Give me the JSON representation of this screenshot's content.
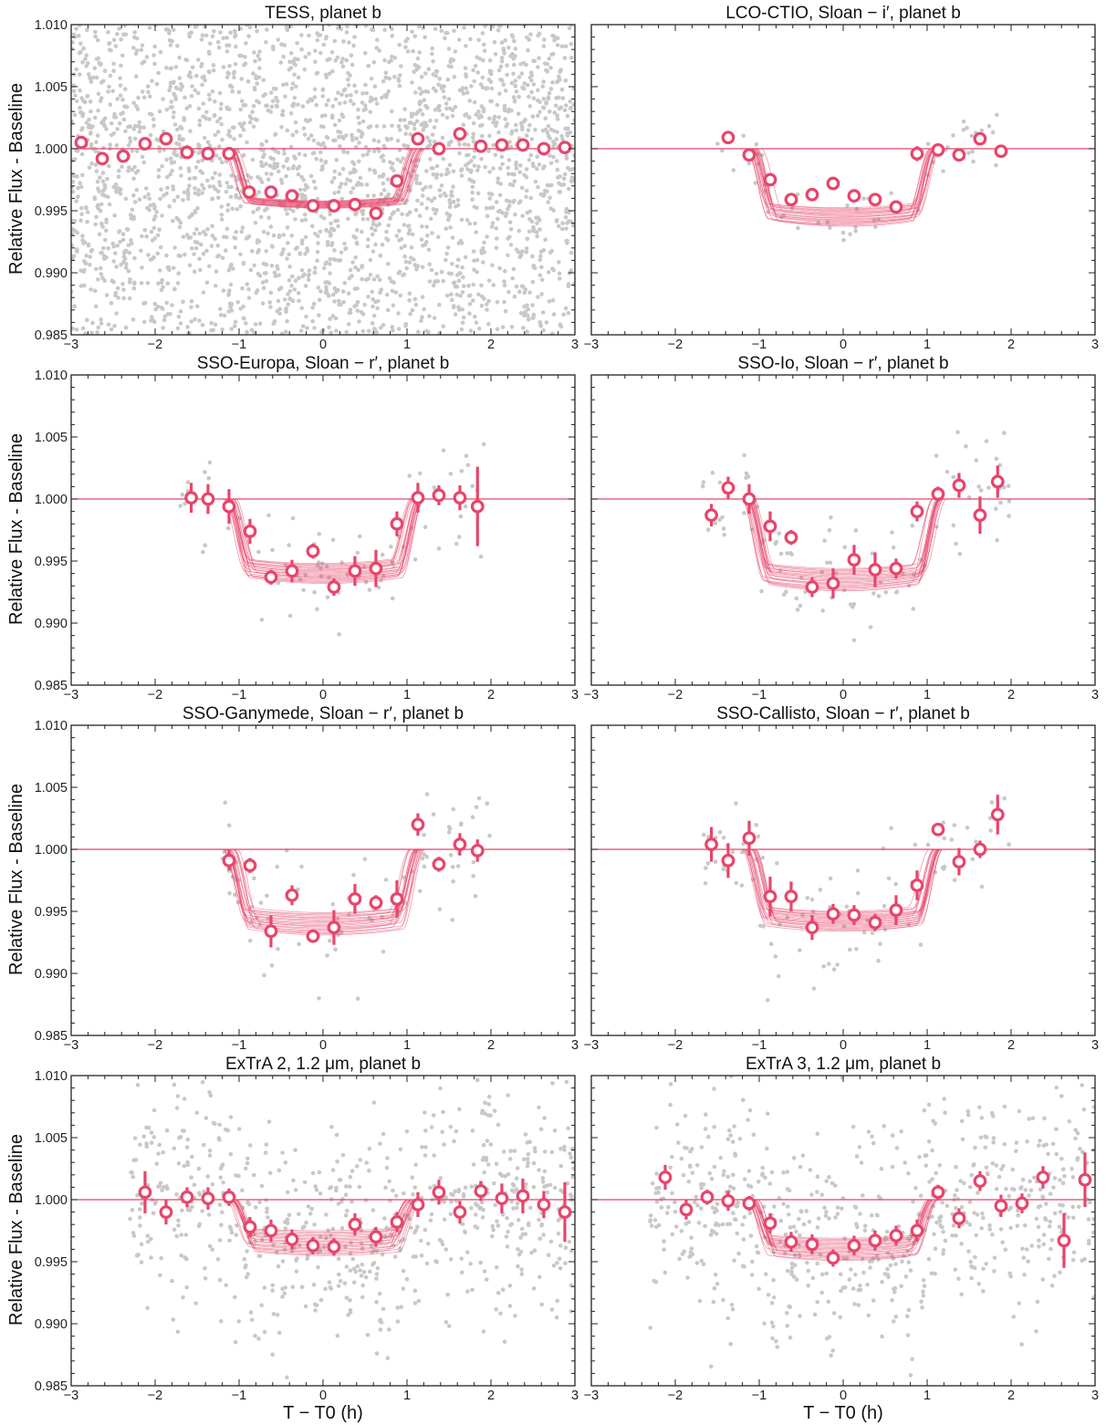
{
  "figure": {
    "ylabel": "Relative Flux - Baseline",
    "xlabel": "T − T0 (h)",
    "colors": {
      "model": "#e8456b",
      "binned": "#e8456b",
      "raw": "#c8c8c8",
      "axis": "#222222"
    }
  },
  "chart_data": [
    {
      "type": "scatter",
      "title": "TESS, planet b",
      "xlim": [
        -3,
        3
      ],
      "ylim": [
        0.985,
        1.01
      ],
      "xticks": [
        "−3",
        "−2",
        "−1",
        "0",
        "1",
        "2",
        "3"
      ],
      "yticks": [
        "0.985",
        "0.990",
        "0.995",
        "1.000",
        "1.005",
        "1.010"
      ],
      "model": {
        "depth": 0.0045,
        "t_ingress": -1.0,
        "t_egress": 1.0,
        "variation": 0.0006
      },
      "raw_points": {
        "count": 2600,
        "scatter": 0.006
      },
      "binned": [
        {
          "x": -2.88,
          "y": 1.0005,
          "err": 0.0003
        },
        {
          "x": -2.63,
          "y": 0.9992,
          "err": 0.0003
        },
        {
          "x": -2.38,
          "y": 0.9994,
          "err": 0.0003
        },
        {
          "x": -2.12,
          "y": 1.0004,
          "err": 0.0003
        },
        {
          "x": -1.87,
          "y": 1.0008,
          "err": 0.0003
        },
        {
          "x": -1.62,
          "y": 0.9997,
          "err": 0.0003
        },
        {
          "x": -1.37,
          "y": 0.9996,
          "err": 0.0003
        },
        {
          "x": -1.12,
          "y": 0.9996,
          "err": 0.0003
        },
        {
          "x": -0.88,
          "y": 0.9965,
          "err": 0.0003
        },
        {
          "x": -0.62,
          "y": 0.9965,
          "err": 0.0003
        },
        {
          "x": -0.37,
          "y": 0.9962,
          "err": 0.0003
        },
        {
          "x": -0.12,
          "y": 0.9954,
          "err": 0.0003
        },
        {
          "x": 0.13,
          "y": 0.9954,
          "err": 0.0003
        },
        {
          "x": 0.38,
          "y": 0.9955,
          "err": 0.0003
        },
        {
          "x": 0.63,
          "y": 0.9948,
          "err": 0.0003
        },
        {
          "x": 0.88,
          "y": 0.9974,
          "err": 0.0003
        },
        {
          "x": 1.13,
          "y": 1.0008,
          "err": 0.0003
        },
        {
          "x": 1.38,
          "y": 1.0,
          "err": 0.0003
        },
        {
          "x": 1.63,
          "y": 1.0012,
          "err": 0.0003
        },
        {
          "x": 1.88,
          "y": 1.0002,
          "err": 0.0003
        },
        {
          "x": 2.13,
          "y": 1.0003,
          "err": 0.0003
        },
        {
          "x": 2.38,
          "y": 1.0003,
          "err": 0.0003
        },
        {
          "x": 2.63,
          "y": 1.0,
          "err": 0.0003
        },
        {
          "x": 2.88,
          "y": 1.0001,
          "err": 0.0003
        }
      ]
    },
    {
      "type": "scatter",
      "title": "LCO-CTIO, Sloan − i′, planet b",
      "xlim": [
        -3,
        3
      ],
      "ylim": [
        0.985,
        1.01
      ],
      "xticks": [
        "−3",
        "−2",
        "−1",
        "0",
        "1",
        "2",
        "3"
      ],
      "yticks": [],
      "model": {
        "depth": 0.0055,
        "t_ingress": -0.95,
        "t_egress": 0.95,
        "variation": 0.0015
      },
      "raw_points": {
        "count": 60,
        "scatter": 0.0012,
        "x_range": [
          -1.5,
          1.9
        ]
      },
      "binned": [
        {
          "x": -1.37,
          "y": 1.0009,
          "err": 0.0003
        },
        {
          "x": -1.12,
          "y": 0.9995,
          "err": 0.0003
        },
        {
          "x": -0.87,
          "y": 0.9975,
          "err": 0.0003
        },
        {
          "x": -0.62,
          "y": 0.9959,
          "err": 0.0003
        },
        {
          "x": -0.37,
          "y": 0.9963,
          "err": 0.0003
        },
        {
          "x": -0.12,
          "y": 0.9972,
          "err": 0.0005
        },
        {
          "x": 0.13,
          "y": 0.9962,
          "err": 0.0004
        },
        {
          "x": 0.38,
          "y": 0.9959,
          "err": 0.0003
        },
        {
          "x": 0.63,
          "y": 0.9953,
          "err": 0.0003
        },
        {
          "x": 0.88,
          "y": 0.9996,
          "err": 0.0006
        },
        {
          "x": 1.13,
          "y": 0.9999,
          "err": 0.0004
        },
        {
          "x": 1.38,
          "y": 0.9995,
          "err": 0.0003
        },
        {
          "x": 1.63,
          "y": 1.0008,
          "err": 0.0003
        },
        {
          "x": 1.88,
          "y": 0.9998,
          "err": 0.0003
        }
      ]
    },
    {
      "type": "scatter",
      "title": "SSO-Europa, Sloan − r′, planet b",
      "xlim": [
        -3,
        3
      ],
      "ylim": [
        0.985,
        1.01
      ],
      "xticks": [
        "−3",
        "−2",
        "−1",
        "0",
        "1",
        "2",
        "3"
      ],
      "yticks": [
        "0.985",
        "0.990",
        "0.995",
        "1.000",
        "1.005",
        "1.010"
      ],
      "model": {
        "depth": 0.006,
        "t_ingress": -1.0,
        "t_egress": 1.0,
        "variation": 0.0016
      },
      "raw_points": {
        "count": 90,
        "scatter": 0.0022,
        "x_range": [
          -1.7,
          2.0
        ]
      },
      "binned": [
        {
          "x": -1.57,
          "y": 1.0001,
          "err": 0.0012
        },
        {
          "x": -1.37,
          "y": 1.0,
          "err": 0.0012
        },
        {
          "x": -1.12,
          "y": 0.9994,
          "err": 0.0014
        },
        {
          "x": -0.87,
          "y": 0.9974,
          "err": 0.001
        },
        {
          "x": -0.62,
          "y": 0.9937,
          "err": 0.0006
        },
        {
          "x": -0.37,
          "y": 0.9942,
          "err": 0.0009
        },
        {
          "x": -0.12,
          "y": 0.9958,
          "err": 0.0006
        },
        {
          "x": 0.13,
          "y": 0.9929,
          "err": 0.0007
        },
        {
          "x": 0.38,
          "y": 0.9942,
          "err": 0.0012
        },
        {
          "x": 0.63,
          "y": 0.9944,
          "err": 0.0015
        },
        {
          "x": 0.88,
          "y": 0.998,
          "err": 0.001
        },
        {
          "x": 1.13,
          "y": 1.0001,
          "err": 0.0012
        },
        {
          "x": 1.38,
          "y": 1.0003,
          "err": 0.0008
        },
        {
          "x": 1.63,
          "y": 1.0001,
          "err": 0.001
        },
        {
          "x": 1.84,
          "y": 0.9994,
          "err": 0.0032
        }
      ]
    },
    {
      "type": "scatter",
      "title": "SSO-Io, Sloan − r′, planet b",
      "xlim": [
        -3,
        3
      ],
      "ylim": [
        0.985,
        1.01
      ],
      "xticks": [
        "−3",
        "−2",
        "−1",
        "0",
        "1",
        "2",
        "3"
      ],
      "yticks": [],
      "model": {
        "depth": 0.0065,
        "t_ingress": -1.0,
        "t_egress": 1.0,
        "variation": 0.0018
      },
      "raw_points": {
        "count": 100,
        "scatter": 0.0025,
        "x_range": [
          -1.7,
          2.0
        ]
      },
      "binned": [
        {
          "x": -1.57,
          "y": 0.9987,
          "err": 0.0009
        },
        {
          "x": -1.37,
          "y": 1.0009,
          "err": 0.0009
        },
        {
          "x": -1.12,
          "y": 1.0,
          "err": 0.0012
        },
        {
          "x": -0.87,
          "y": 0.9978,
          "err": 0.0012
        },
        {
          "x": -0.62,
          "y": 0.9969,
          "err": 0.0006
        },
        {
          "x": -0.37,
          "y": 0.9929,
          "err": 0.0008
        },
        {
          "x": -0.12,
          "y": 0.9932,
          "err": 0.0012
        },
        {
          "x": 0.13,
          "y": 0.9951,
          "err": 0.0012
        },
        {
          "x": 0.38,
          "y": 0.9943,
          "err": 0.0014
        },
        {
          "x": 0.63,
          "y": 0.9944,
          "err": 0.0008
        },
        {
          "x": 0.88,
          "y": 0.999,
          "err": 0.0008
        },
        {
          "x": 1.13,
          "y": 1.0004,
          "err": 0.0006
        },
        {
          "x": 1.38,
          "y": 1.0011,
          "err": 0.001
        },
        {
          "x": 1.63,
          "y": 0.9987,
          "err": 0.0015
        },
        {
          "x": 1.84,
          "y": 1.0014,
          "err": 0.0013
        }
      ]
    },
    {
      "type": "scatter",
      "title": "SSO-Ganymede, Sloan − r′, planet b",
      "xlim": [
        -3,
        3
      ],
      "ylim": [
        0.985,
        1.01
      ],
      "xticks": [
        "−3",
        "−2",
        "−1",
        "0",
        "1",
        "2",
        "3"
      ],
      "yticks": [
        "0.985",
        "0.990",
        "0.995",
        "1.000",
        "1.005",
        "1.010"
      ],
      "model": {
        "depth": 0.006,
        "t_ingress": -1.0,
        "t_egress": 1.0,
        "variation": 0.0018
      },
      "raw_points": {
        "count": 85,
        "scatter": 0.0025,
        "x_range": [
          -1.2,
          2.0
        ]
      },
      "binned": [
        {
          "x": -1.12,
          "y": 0.9991,
          "err": 0.0008
        },
        {
          "x": -0.87,
          "y": 0.9987,
          "err": 0.0006
        },
        {
          "x": -0.62,
          "y": 0.9934,
          "err": 0.0013
        },
        {
          "x": -0.37,
          "y": 0.9963,
          "err": 0.0008
        },
        {
          "x": -0.12,
          "y": 0.993,
          "err": 0.0005
        },
        {
          "x": 0.13,
          "y": 0.9937,
          "err": 0.0014
        },
        {
          "x": 0.38,
          "y": 0.996,
          "err": 0.0012
        },
        {
          "x": 0.63,
          "y": 0.9957,
          "err": 0.0006
        },
        {
          "x": 0.88,
          "y": 0.996,
          "err": 0.0015
        },
        {
          "x": 1.13,
          "y": 1.002,
          "err": 0.0009
        },
        {
          "x": 1.38,
          "y": 0.9988,
          "err": 0.0006
        },
        {
          "x": 1.63,
          "y": 1.0004,
          "err": 0.0009
        },
        {
          "x": 1.84,
          "y": 0.9999,
          "err": 0.0009
        }
      ]
    },
    {
      "type": "scatter",
      "title": "SSO-Callisto, Sloan − r′, planet b",
      "xlim": [
        -3,
        3
      ],
      "ylim": [
        0.985,
        1.01
      ],
      "xticks": [
        "−3",
        "−2",
        "−1",
        "0",
        "1",
        "2",
        "3"
      ],
      "yticks": [],
      "model": {
        "depth": 0.0058,
        "t_ingress": -1.0,
        "t_egress": 1.0,
        "variation": 0.0016
      },
      "raw_points": {
        "count": 95,
        "scatter": 0.0025,
        "x_range": [
          -1.7,
          2.0
        ]
      },
      "binned": [
        {
          "x": -1.57,
          "y": 1.0004,
          "err": 0.0014
        },
        {
          "x": -1.37,
          "y": 0.9991,
          "err": 0.0014
        },
        {
          "x": -1.12,
          "y": 1.0009,
          "err": 0.0014
        },
        {
          "x": -0.87,
          "y": 0.9962,
          "err": 0.0016
        },
        {
          "x": -0.62,
          "y": 0.9962,
          "err": 0.0012
        },
        {
          "x": -0.37,
          "y": 0.9937,
          "err": 0.001
        },
        {
          "x": -0.12,
          "y": 0.9948,
          "err": 0.0008
        },
        {
          "x": 0.13,
          "y": 0.9947,
          "err": 0.0008
        },
        {
          "x": 0.38,
          "y": 0.9941,
          "err": 0.0007
        },
        {
          "x": 0.63,
          "y": 0.9951,
          "err": 0.0012
        },
        {
          "x": 0.88,
          "y": 0.9971,
          "err": 0.0012
        },
        {
          "x": 1.13,
          "y": 1.0016,
          "err": 0.0004
        },
        {
          "x": 1.38,
          "y": 0.999,
          "err": 0.0011
        },
        {
          "x": 1.63,
          "y": 1.0,
          "err": 0.0007
        },
        {
          "x": 1.84,
          "y": 1.0028,
          "err": 0.0016
        }
      ]
    },
    {
      "type": "scatter",
      "title": "ExTrA 2, 1.2 μm, planet b",
      "xlim": [
        -3,
        3
      ],
      "ylim": [
        0.985,
        1.01
      ],
      "xticks": [
        "−3",
        "−2",
        "−1",
        "0",
        "1",
        "2",
        "3"
      ],
      "yticks": [
        "0.985",
        "0.990",
        "0.995",
        "1.000",
        "1.005",
        "1.010"
      ],
      "model": {
        "depth": 0.0035,
        "t_ingress": -0.95,
        "t_egress": 0.95,
        "variation": 0.002
      },
      "raw_points": {
        "count": 700,
        "scatter": 0.0045,
        "x_range": [
          -2.3,
          3.0
        ]
      },
      "binned": [
        {
          "x": -2.12,
          "y": 1.0006,
          "err": 0.0017
        },
        {
          "x": -1.87,
          "y": 0.999,
          "err": 0.001
        },
        {
          "x": -1.62,
          "y": 1.0002,
          "err": 0.0008
        },
        {
          "x": -1.37,
          "y": 1.0001,
          "err": 0.0009
        },
        {
          "x": -1.12,
          "y": 1.0002,
          "err": 0.0007
        },
        {
          "x": -0.87,
          "y": 0.9978,
          "err": 0.0008
        },
        {
          "x": -0.62,
          "y": 0.9975,
          "err": 0.0009
        },
        {
          "x": -0.37,
          "y": 0.9968,
          "err": 0.0008
        },
        {
          "x": -0.12,
          "y": 0.9963,
          "err": 0.0007
        },
        {
          "x": 0.13,
          "y": 0.9962,
          "err": 0.0007
        },
        {
          "x": 0.38,
          "y": 0.998,
          "err": 0.0009
        },
        {
          "x": 0.63,
          "y": 0.997,
          "err": 0.0008
        },
        {
          "x": 0.88,
          "y": 0.9982,
          "err": 0.0008
        },
        {
          "x": 1.13,
          "y": 0.9996,
          "err": 0.001
        },
        {
          "x": 1.38,
          "y": 1.0006,
          "err": 0.001
        },
        {
          "x": 1.63,
          "y": 0.999,
          "err": 0.0009
        },
        {
          "x": 1.88,
          "y": 1.0007,
          "err": 0.0008
        },
        {
          "x": 2.13,
          "y": 1.0001,
          "err": 0.0012
        },
        {
          "x": 2.38,
          "y": 1.0003,
          "err": 0.0014
        },
        {
          "x": 2.63,
          "y": 0.9996,
          "err": 0.0011
        },
        {
          "x": 2.88,
          "y": 0.999,
          "err": 0.0024
        }
      ]
    },
    {
      "type": "scatter",
      "title": "ExTrA 3, 1.2 μm, planet b",
      "xlim": [
        -3,
        3
      ],
      "ylim": [
        0.985,
        1.01
      ],
      "xticks": [
        "−3",
        "−2",
        "−1",
        "0",
        "1",
        "2",
        "3"
      ],
      "yticks": [],
      "model": {
        "depth": 0.004,
        "t_ingress": -0.95,
        "t_egress": 0.95,
        "variation": 0.0018
      },
      "raw_points": {
        "count": 650,
        "scatter": 0.0045,
        "x_range": [
          -2.3,
          3.0
        ]
      },
      "binned": [
        {
          "x": -2.12,
          "y": 1.0018,
          "err": 0.001
        },
        {
          "x": -1.87,
          "y": 0.9992,
          "err": 0.0008
        },
        {
          "x": -1.62,
          "y": 1.0002,
          "err": 0.0006
        },
        {
          "x": -1.37,
          "y": 0.9999,
          "err": 0.0008
        },
        {
          "x": -1.12,
          "y": 0.9997,
          "err": 0.0006
        },
        {
          "x": -0.87,
          "y": 0.9981,
          "err": 0.0008
        },
        {
          "x": -0.62,
          "y": 0.9966,
          "err": 0.0008
        },
        {
          "x": -0.37,
          "y": 0.9964,
          "err": 0.0008
        },
        {
          "x": -0.12,
          "y": 0.9953,
          "err": 0.0007
        },
        {
          "x": 0.13,
          "y": 0.9963,
          "err": 0.0008
        },
        {
          "x": 0.38,
          "y": 0.9967,
          "err": 0.0008
        },
        {
          "x": 0.63,
          "y": 0.9971,
          "err": 0.0008
        },
        {
          "x": 0.88,
          "y": 0.9975,
          "err": 0.0009
        },
        {
          "x": 1.13,
          "y": 1.0006,
          "err": 0.0006
        },
        {
          "x": 1.38,
          "y": 0.9985,
          "err": 0.0008
        },
        {
          "x": 1.63,
          "y": 1.0015,
          "err": 0.0008
        },
        {
          "x": 1.88,
          "y": 0.9995,
          "err": 0.0009
        },
        {
          "x": 2.13,
          "y": 0.9997,
          "err": 0.0008
        },
        {
          "x": 2.38,
          "y": 1.0018,
          "err": 0.0009
        },
        {
          "x": 2.63,
          "y": 0.9967,
          "err": 0.0022
        },
        {
          "x": 2.88,
          "y": 1.0016,
          "err": 0.0022
        }
      ]
    }
  ]
}
